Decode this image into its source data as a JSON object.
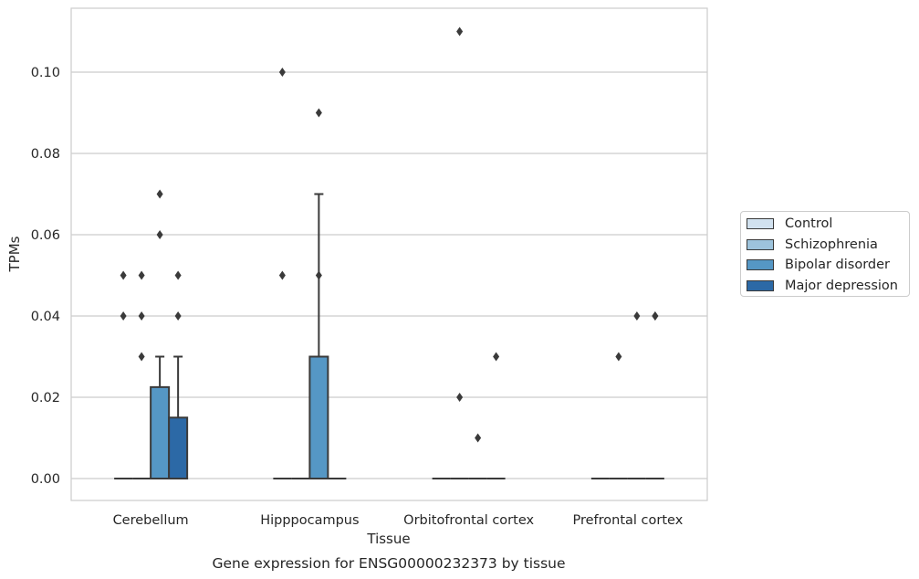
{
  "chart_data": {
    "type": "box",
    "title": "Gene expression for ENSG00000232373 by tissue",
    "xlabel": "Tissue",
    "ylabel": "TPMs",
    "categories": [
      "Cerebellum",
      "Hipppocampus",
      "Orbitofrontal cortex",
      "Prefrontal cortex"
    ],
    "ylim": [
      -0.0055,
      0.116
    ],
    "yticks": [
      0.0,
      0.02,
      0.04,
      0.06,
      0.08,
      0.1
    ],
    "ytick_labels": [
      "0.00",
      "0.02",
      "0.04",
      "0.06",
      "0.08",
      "0.10"
    ],
    "grid": true,
    "legend_position": "right",
    "series": [
      {
        "name": "Control",
        "color": "#d1e1ef",
        "boxes": [
          {
            "q1": 0,
            "median": 0,
            "q3": 0,
            "whisker_low": 0,
            "whisker_high": 0,
            "outliers": [
              0.05,
              0.04
            ]
          },
          {
            "q1": 0,
            "median": 0,
            "q3": 0,
            "whisker_low": 0,
            "whisker_high": 0,
            "outliers": [
              0.05,
              0.1
            ]
          },
          {
            "q1": 0,
            "median": 0,
            "q3": 0,
            "whisker_low": 0,
            "whisker_high": 0,
            "outliers": []
          },
          {
            "q1": 0,
            "median": 0,
            "q3": 0,
            "whisker_low": 0,
            "whisker_high": 0,
            "outliers": []
          }
        ]
      },
      {
        "name": "Schizophrenia",
        "color": "#9dc3dc",
        "boxes": [
          {
            "q1": 0,
            "median": 0,
            "q3": 0,
            "whisker_low": 0,
            "whisker_high": 0,
            "outliers": [
              0.05,
              0.04,
              0.03
            ]
          },
          {
            "q1": 0,
            "median": 0,
            "q3": 0,
            "whisker_low": 0,
            "whisker_high": 0,
            "outliers": []
          },
          {
            "q1": 0,
            "median": 0,
            "q3": 0,
            "whisker_low": 0,
            "whisker_high": 0,
            "outliers": [
              0.11,
              0.02
            ]
          },
          {
            "q1": 0,
            "median": 0,
            "q3": 0,
            "whisker_low": 0,
            "whisker_high": 0,
            "outliers": [
              0.03
            ]
          }
        ]
      },
      {
        "name": "Bipolar disorder",
        "color": "#5597c5",
        "boxes": [
          {
            "q1": 0,
            "median": 0,
            "q3": 0.0225,
            "whisker_low": 0,
            "whisker_high": 0.03,
            "outliers": [
              0.07,
              0.06
            ]
          },
          {
            "q1": 0,
            "median": 0,
            "q3": 0.03,
            "whisker_low": 0,
            "whisker_high": 0.07,
            "outliers": [
              0.09,
              0.05
            ]
          },
          {
            "q1": 0,
            "median": 0,
            "q3": 0,
            "whisker_low": 0,
            "whisker_high": 0,
            "outliers": [
              0.01
            ]
          },
          {
            "q1": 0,
            "median": 0,
            "q3": 0,
            "whisker_low": 0,
            "whisker_high": 0,
            "outliers": [
              0.04
            ]
          }
        ]
      },
      {
        "name": "Major depression",
        "color": "#2c69a6",
        "boxes": [
          {
            "q1": 0,
            "median": 0,
            "q3": 0.015,
            "whisker_low": 0,
            "whisker_high": 0.03,
            "outliers": [
              0.05,
              0.04
            ]
          },
          {
            "q1": 0,
            "median": 0,
            "q3": 0,
            "whisker_low": 0,
            "whisker_high": 0,
            "outliers": []
          },
          {
            "q1": 0,
            "median": 0,
            "q3": 0,
            "whisker_low": 0,
            "whisker_high": 0,
            "outliers": [
              0.03
            ]
          },
          {
            "q1": 0,
            "median": 0,
            "q3": 0,
            "whisker_low": 0,
            "whisker_high": 0,
            "outliers": [
              0.04,
              0.04
            ]
          }
        ]
      }
    ],
    "colors": {
      "grid": "#cccccc",
      "axis": "#cccccc",
      "box_edge": "#3a3a3a"
    }
  }
}
